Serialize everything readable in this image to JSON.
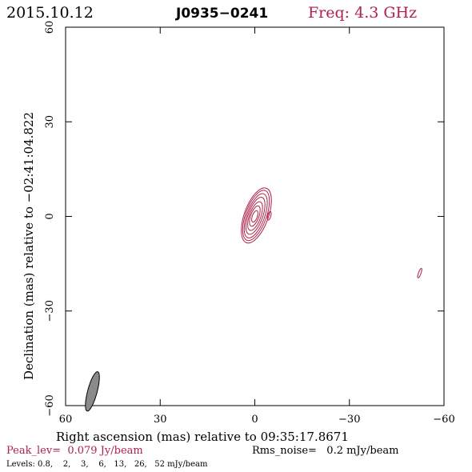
{
  "header": {
    "date": "2015.10.12",
    "source": "J0935−0241",
    "freq": "Freq: 4.3 GHz"
  },
  "footer": {
    "peak": "Peak_lev=  0.079 Jy/beam",
    "rms": "Rms_noise=   0.2 mJy/beam",
    "levels": "Levels: 0.8,    2,    3,    6,   13,   26,   52 mJy/beam"
  },
  "colors": {
    "contour": "#b0204a",
    "peak_text": "#b0204a",
    "freq_text": "#b0204a",
    "beam_fill": "#8a8a8a"
  },
  "chart_data": {
    "type": "contour",
    "xlabel": "Right ascension (mas) relative to 09:35:17.8671",
    "ylabel": "Declination (mas) relative to −02:41:04.822",
    "xlim": [
      60,
      -60
    ],
    "ylim": [
      -60,
      60
    ],
    "x_ticks": [
      "60",
      "30",
      "0",
      "−30",
      "−60"
    ],
    "y_ticks": [
      "−60",
      "−30",
      "0",
      "30",
      "60"
    ],
    "x_tick_values": [
      60,
      30,
      0,
      -30,
      -60
    ],
    "y_tick_values": [
      -60,
      -30,
      0,
      30,
      60
    ],
    "levels_mJy": [
      0.8,
      2,
      3,
      6,
      13,
      26,
      52
    ],
    "core": {
      "x": 0.0,
      "y": 0.0,
      "pa_deg": 20
    },
    "contours": [
      {
        "x": -0.5,
        "y": 0.3,
        "rx": 3.8,
        "ry": 9.2,
        "pa": 20
      },
      {
        "x": -0.4,
        "y": 0.3,
        "rx": 3.3,
        "ry": 8.4,
        "pa": 20
      },
      {
        "x": -0.3,
        "y": 0.2,
        "rx": 2.8,
        "ry": 7.4,
        "pa": 20
      },
      {
        "x": -0.2,
        "y": 0.2,
        "rx": 2.3,
        "ry": 6.2,
        "pa": 20
      },
      {
        "x": -0.1,
        "y": 0.1,
        "rx": 1.8,
        "ry": 4.8,
        "pa": 20
      },
      {
        "x": 0.0,
        "y": 0.1,
        "rx": 1.3,
        "ry": 3.4,
        "pa": 20
      },
      {
        "x": 0.0,
        "y": 0.0,
        "rx": 0.8,
        "ry": 1.9,
        "pa": 20
      },
      {
        "x": -4.6,
        "y": 0.2,
        "rx": 0.5,
        "ry": 1.4,
        "pa": 15
      },
      {
        "x": -52.3,
        "y": -18.0,
        "rx": 0.4,
        "ry": 1.6,
        "pa": 20
      }
    ],
    "beam": {
      "x": 51.5,
      "y": -55.5,
      "major": 3.4,
      "minor": 1.0,
      "pa_deg": 15
    }
  }
}
